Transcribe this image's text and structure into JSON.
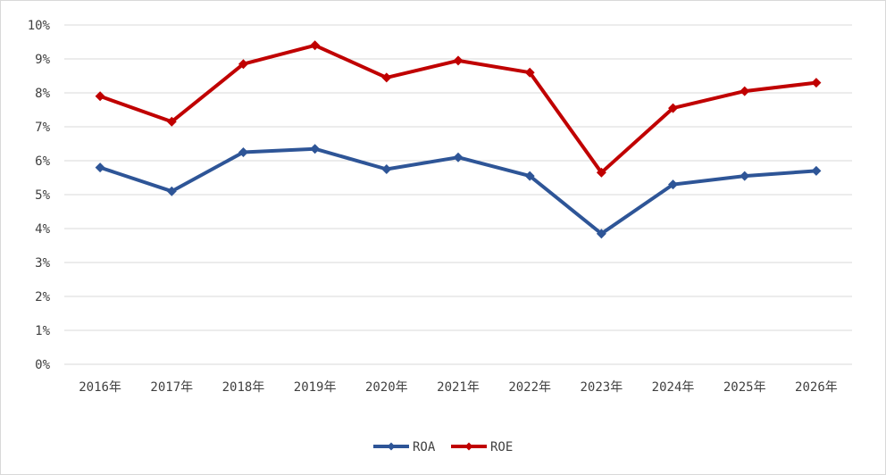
{
  "chart_data": {
    "type": "line",
    "categories": [
      "2016年",
      "2017年",
      "2018年",
      "2019年",
      "2020年",
      "2021年",
      "2022年",
      "2023年",
      "2024年",
      "2025年",
      "2026年"
    ],
    "series": [
      {
        "name": "ROA",
        "color": "#2e5597",
        "values": [
          5.8,
          5.1,
          6.25,
          6.35,
          5.75,
          6.1,
          5.55,
          3.85,
          5.3,
          5.55,
          5.7
        ]
      },
      {
        "name": "ROE",
        "color": "#c00000",
        "values": [
          7.9,
          7.15,
          8.85,
          9.4,
          8.45,
          8.95,
          8.6,
          5.65,
          7.55,
          8.05,
          8.3
        ]
      }
    ],
    "ylim": [
      0,
      10
    ],
    "yticks": [
      "0%",
      "1%",
      "2%",
      "3%",
      "4%",
      "5%",
      "6%",
      "7%",
      "8%",
      "9%",
      "10%"
    ],
    "grid": true,
    "legend_position": "bottom"
  }
}
